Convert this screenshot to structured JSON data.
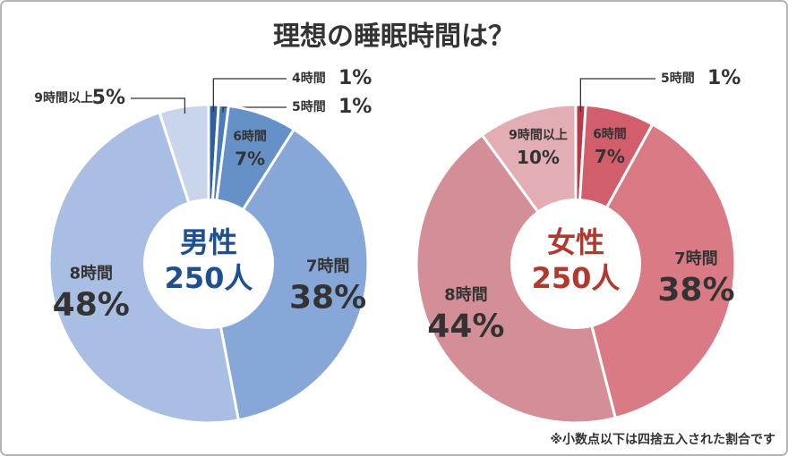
{
  "title": "理想の睡眠時間は？",
  "note": "※小数点以下は四捨五入された割合です",
  "chart_data": [
    {
      "type": "pie",
      "center_title": "男性",
      "center_subtitle": "250人",
      "center_color": "#1d4f91",
      "categories": [
        "4時間",
        "5時間",
        "6時間",
        "7時間",
        "8時間",
        "9時間以上"
      ],
      "values": [
        1,
        1,
        7,
        38,
        48,
        5
      ],
      "value_labels": [
        "1%",
        "1%",
        "7%",
        "38%",
        "48%",
        "5%"
      ],
      "colors": [
        "#2f5f9e",
        "#4a7cbc",
        "#6690c8",
        "#86a7d7",
        "#a9bee3",
        "#c8d5ea"
      ]
    },
    {
      "type": "pie",
      "center_title": "女性",
      "center_subtitle": "250人",
      "center_color": "#b0382c",
      "categories": [
        "5時間",
        "6時間",
        "7時間",
        "8時間",
        "9時間以上"
      ],
      "values": [
        1,
        7,
        38,
        44,
        10
      ],
      "value_labels": [
        "1%",
        "7%",
        "38%",
        "44%",
        "10%"
      ],
      "colors": [
        "#b93a4a",
        "#d25e6c",
        "#d97a85",
        "#d38e97",
        "#e2adb3"
      ]
    }
  ]
}
